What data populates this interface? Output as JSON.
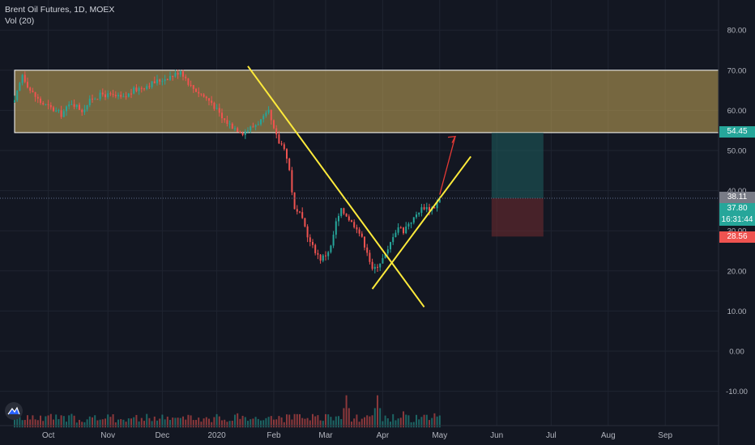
{
  "header": {
    "title": "Brent Oil Futures, 1D, MOEX",
    "indicator": "Vol (20)"
  },
  "colors": {
    "up": "#26a69a",
    "down": "#ef5350",
    "zone_fill": "#c8a95a",
    "trendline": "#ffeb3b",
    "arrow": "#e53935",
    "target": "#1e5f5e",
    "stop": "#6b2a2e",
    "axis_text": "#b2b5be",
    "grid": "#1f2430"
  },
  "price_labels": {
    "target": "54.45",
    "last_grey": "38.11",
    "current": "37.80",
    "countdown": "16:31:44",
    "stop": "28.56"
  },
  "chart_data": {
    "type": "candlestick",
    "title": "Brent Oil Futures, 1D, MOEX",
    "x_ticks": [
      "Oct",
      "Nov",
      "Dec",
      "2020",
      "Feb",
      "Mar",
      "Apr",
      "May",
      "Jun",
      "Jul",
      "Aug",
      "Sep"
    ],
    "y_ticks": [
      80,
      70,
      60,
      50,
      40,
      30,
      20,
      10,
      0,
      -10
    ],
    "y_tick_labels": [
      "80.00",
      "70.00",
      "60.00",
      "50.00",
      "40.00",
      "30.00",
      "20.00",
      "10.00",
      "0.00",
      "-10.00"
    ],
    "ylim": [
      -19,
      87
    ],
    "price_path": [
      [
        0,
        62
      ],
      [
        3,
        69
      ],
      [
        6,
        65
      ],
      [
        10,
        62
      ],
      [
        14,
        60.5
      ],
      [
        18,
        59
      ],
      [
        22,
        62
      ],
      [
        26,
        60
      ],
      [
        30,
        63
      ],
      [
        34,
        64
      ],
      [
        38,
        63.5
      ],
      [
        42,
        63
      ],
      [
        46,
        65
      ],
      [
        50,
        66
      ],
      [
        54,
        67
      ],
      [
        58,
        68
      ],
      [
        62,
        69
      ],
      [
        64,
        70
      ],
      [
        68,
        66
      ],
      [
        72,
        64
      ],
      [
        76,
        62
      ],
      [
        80,
        58
      ],
      [
        84,
        56
      ],
      [
        88,
        54.5
      ],
      [
        92,
        56
      ],
      [
        96,
        58
      ],
      [
        98,
        59.5
      ],
      [
        100,
        55
      ],
      [
        102,
        52
      ],
      [
        104,
        51
      ],
      [
        106,
        45
      ],
      [
        108,
        35
      ],
      [
        110,
        34
      ],
      [
        112,
        31
      ],
      [
        114,
        27
      ],
      [
        116,
        25
      ],
      [
        118,
        23
      ],
      [
        120,
        24
      ],
      [
        122,
        26
      ],
      [
        124,
        32
      ],
      [
        126,
        35
      ],
      [
        128,
        34
      ],
      [
        130,
        32
      ],
      [
        132,
        31
      ],
      [
        134,
        28
      ],
      [
        136,
        25
      ],
      [
        138,
        20
      ],
      [
        140,
        21.5
      ],
      [
        142,
        23
      ],
      [
        144,
        25
      ],
      [
        146,
        29
      ],
      [
        148,
        31
      ],
      [
        150,
        30
      ],
      [
        152,
        32
      ],
      [
        154,
        33
      ],
      [
        156,
        35
      ],
      [
        158,
        36
      ],
      [
        160,
        35.5
      ],
      [
        162,
        36
      ],
      [
        164,
        37.8
      ]
    ],
    "last_price": 37.8,
    "resistance_zone": [
      54.45,
      70
    ],
    "trendlines": [
      {
        "from": [
          90,
          71
        ],
        "to": [
          158,
          11
        ]
      },
      {
        "from": [
          138,
          15.5
        ],
        "to": [
          176,
          48.5
        ]
      }
    ],
    "arrow": {
      "from": [
        164,
        39
      ],
      "to": [
        170,
        53.5
      ]
    },
    "position": {
      "entry": 38.11,
      "target": 54.45,
      "stop": 28.56,
      "start": 184,
      "end": 204
    },
    "volume": {
      "max_price_units": 8,
      "base": -19,
      "spikes": [
        [
          7,
          3
        ],
        [
          86,
          3.5
        ],
        [
          108,
          3.2
        ],
        [
          128,
          8
        ],
        [
          140,
          8
        ],
        [
          150,
          4
        ],
        [
          162,
          3.5
        ]
      ]
    }
  }
}
